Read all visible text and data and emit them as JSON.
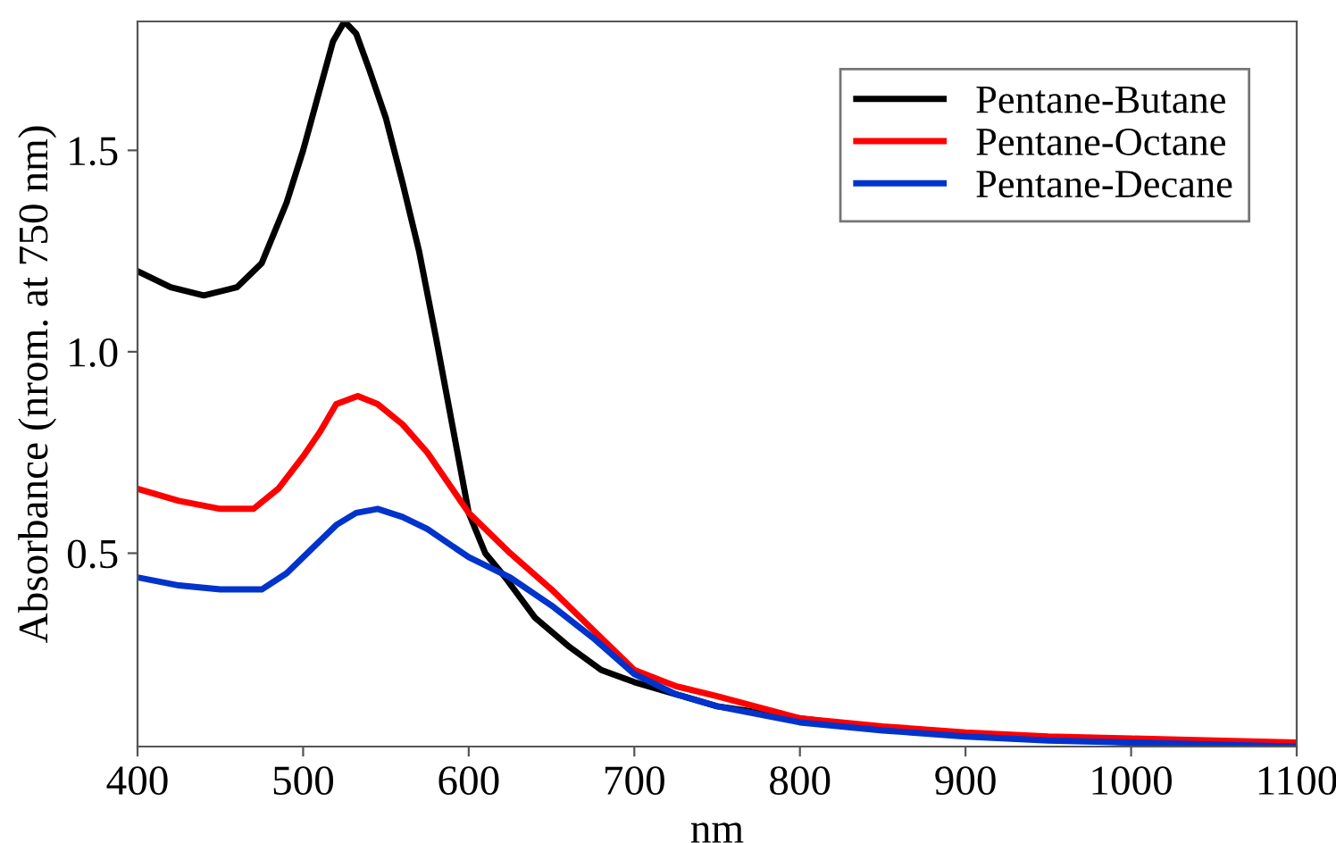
{
  "chart_data": {
    "type": "line",
    "xlabel": "nm",
    "ylabel": "Absorbance (nrom. at 750 nm)",
    "xlim": [
      400,
      1100
    ],
    "ylim": [
      0.02,
      1.82
    ],
    "xticks": [
      400,
      500,
      600,
      700,
      800,
      900,
      1000,
      1100
    ],
    "yticks": [
      0.5,
      {
        "value": 1,
        "label": "1.0"
      },
      1.5
    ],
    "grid": false,
    "legend": "top right",
    "marker": "none",
    "line_style": "solid",
    "series": [
      {
        "name": "Pentane-Butane",
        "color": "#000000",
        "x": [
          400,
          420,
          440,
          460,
          475,
          490,
          500,
          510,
          518,
          525,
          532,
          540,
          550,
          560,
          570,
          580,
          590,
          600,
          610,
          622,
          640,
          660,
          680,
          700,
          725,
          750,
          800,
          850,
          900,
          950,
          1000,
          1050,
          1100
        ],
        "values": [
          1.2,
          1.16,
          1.14,
          1.16,
          1.22,
          1.37,
          1.5,
          1.65,
          1.77,
          1.82,
          1.79,
          1.7,
          1.58,
          1.42,
          1.25,
          1.04,
          0.82,
          0.6,
          0.5,
          0.44,
          0.34,
          0.27,
          0.21,
          0.18,
          0.15,
          0.12,
          0.09,
          0.065,
          0.05,
          0.04,
          0.03,
          0.027,
          0.025
        ]
      },
      {
        "name": "Pentane-Octane",
        "color": "#ff0000",
        "x": [
          400,
          425,
          450,
          470,
          485,
          500,
          510,
          520,
          533,
          545,
          560,
          575,
          600,
          625,
          650,
          675,
          700,
          725,
          750,
          800,
          850,
          900,
          950,
          1000,
          1050,
          1100
        ],
        "values": [
          0.66,
          0.63,
          0.61,
          0.61,
          0.66,
          0.74,
          0.8,
          0.87,
          0.89,
          0.87,
          0.82,
          0.75,
          0.6,
          0.5,
          0.41,
          0.31,
          0.21,
          0.17,
          0.145,
          0.09,
          0.07,
          0.055,
          0.045,
          0.04,
          0.035,
          0.03
        ]
      },
      {
        "name": "Pentane-Decane",
        "color": "#0033cc",
        "x": [
          400,
          425,
          450,
          475,
          490,
          500,
          510,
          520,
          532,
          545,
          560,
          575,
          600,
          625,
          650,
          675,
          700,
          725,
          750,
          800,
          850,
          900,
          950,
          1000,
          1050,
          1100
        ],
        "values": [
          0.44,
          0.42,
          0.41,
          0.41,
          0.45,
          0.49,
          0.53,
          0.57,
          0.6,
          0.61,
          0.59,
          0.56,
          0.49,
          0.44,
          0.37,
          0.29,
          0.2,
          0.15,
          0.12,
          0.08,
          0.06,
          0.045,
          0.035,
          0.03,
          0.025,
          0.02
        ]
      }
    ]
  }
}
